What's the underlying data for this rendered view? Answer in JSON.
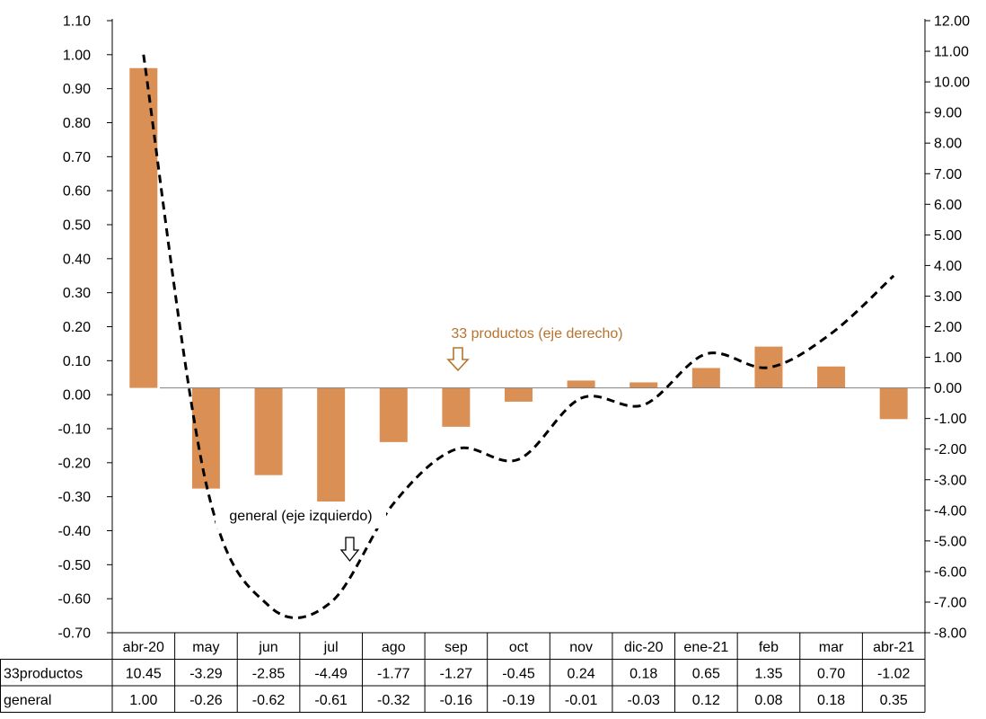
{
  "chart_data": {
    "type": "bar",
    "categories": [
      "abr-20",
      "may",
      "jun",
      "jul",
      "ago",
      "sep",
      "oct",
      "nov",
      "dic-20",
      "ene-21",
      "feb",
      "mar",
      "abr-21"
    ],
    "series": [
      {
        "name": "33productos",
        "chart_type": "bar",
        "axis": "right",
        "values": [
          10.45,
          -3.29,
          -2.85,
          -4.49,
          -1.77,
          -1.27,
          -0.45,
          0.24,
          0.18,
          0.65,
          1.35,
          0.7,
          -1.02
        ]
      },
      {
        "name": "general",
        "chart_type": "line",
        "style": "dashed-smoothed",
        "axis": "left",
        "values": [
          1.0,
          -0.26,
          -0.62,
          -0.61,
          -0.32,
          -0.16,
          -0.19,
          -0.01,
          -0.03,
          0.12,
          0.08,
          0.18,
          0.35
        ]
      }
    ],
    "left_axis": {
      "ylim": [
        -0.7,
        1.1
      ],
      "ticks": [
        "-0.70",
        "-0.60",
        "-0.50",
        "-0.40",
        "-0.30",
        "-0.20",
        "-0.10",
        "0.00",
        "0.10",
        "0.20",
        "0.30",
        "0.40",
        "0.50",
        "0.60",
        "0.70",
        "0.80",
        "0.90",
        "1.00",
        "1.10"
      ]
    },
    "right_axis": {
      "ylim": [
        -8.0,
        12.0
      ],
      "ticks": [
        "-8.00",
        "-7.00",
        "-6.00",
        "-5.00",
        "-4.00",
        "-3.00",
        "-2.00",
        "-1.00",
        "0.00",
        "1.00",
        "2.00",
        "3.00",
        "4.00",
        "5.00",
        "6.00",
        "7.00",
        "8.00",
        "9.00",
        "10.00",
        "11.00",
        "12.00"
      ]
    },
    "annotations": [
      {
        "text": "33 productos (eje derecho)",
        "color": "#B8732E",
        "arrow": "down"
      },
      {
        "text": "general (eje izquierdo)",
        "color": "#000000",
        "arrow": "down"
      }
    ],
    "data_table": {
      "row_labels": [
        "33productos",
        "general"
      ],
      "rows": [
        [
          "10.45",
          "-3.29",
          "-2.85",
          "-4.49",
          "-1.77",
          "-1.27",
          "-0.45",
          "0.24",
          "0.18",
          "0.65",
          "1.35",
          "0.70",
          "-1.02"
        ],
        [
          "1.00",
          "-0.26",
          "-0.62",
          "-0.61",
          "-0.32",
          "-0.16",
          "-0.19",
          "-0.01",
          "-0.03",
          "0.12",
          "0.08",
          "0.18",
          "0.35"
        ]
      ]
    },
    "grid": false,
    "legend": "none (data table below chart)",
    "colors": {
      "bar": "#DA8F55",
      "line": "#000000",
      "axis": "#000000",
      "annotation_bar": "#B8732E"
    }
  }
}
